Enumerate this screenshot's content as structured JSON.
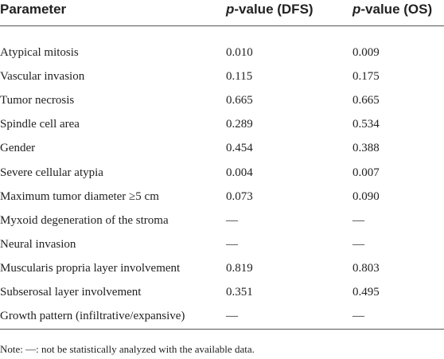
{
  "table": {
    "header": [
      "Parameter",
      "p-value (DFS)",
      "p-value (OS)"
    ],
    "rows": [
      [
        "Atypical mitosis",
        "0.010",
        "0.009"
      ],
      [
        "Vascular invasion",
        "0.115",
        "0.175"
      ],
      [
        "Tumor necrosis",
        "0.665",
        "0.665"
      ],
      [
        "Spindle cell area",
        "0.289",
        "0.534"
      ],
      [
        "Gender",
        "0.454",
        "0.388"
      ],
      [
        "Severe cellular atypia",
        "0.004",
        "0.007"
      ],
      [
        "Maximum tumor diameter ≥5 cm",
        "0.073",
        "0.090"
      ],
      [
        "Myxoid degeneration of the stroma",
        "—",
        "—"
      ],
      [
        "Neural invasion",
        "—",
        "—"
      ],
      [
        "Muscularis propria layer involvement",
        "0.819",
        "0.803"
      ],
      [
        "Subserosal layer involvement",
        "0.351",
        "0.495"
      ],
      [
        "Growth pattern (infiltrative/expansive)",
        "—",
        "—"
      ]
    ],
    "note": "Note: —: not be statistically analyzed with the available data."
  }
}
